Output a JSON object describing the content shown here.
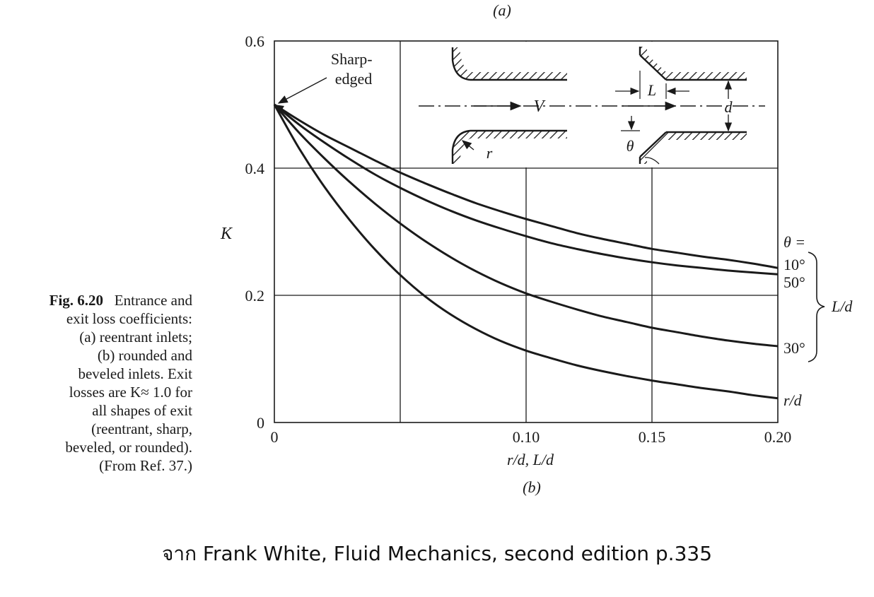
{
  "figure_label_top": "(a)",
  "figure_label_bottom": "(b)",
  "caption": {
    "fig_number": "Fig. 6.20",
    "lines": [
      "Entrance and",
      "exit loss coefficients:",
      "(a) reentrant inlets;",
      "(b) rounded and",
      "beveled inlets. Exit",
      "losses are K≈ 1.0 for",
      "all shapes of exit",
      "(reentrant, sharp,",
      "beveled, or rounded).",
      "(From Ref. 37.)"
    ]
  },
  "source_note": "จาก Frank White, Fluid Mechanics, second edition p.335",
  "colors": {
    "ink": "#1a1a1a",
    "background": "#ffffff"
  },
  "chart_data": {
    "type": "line",
    "xlabel": "r/d, L/d",
    "ylabel": "K",
    "xlim": [
      0,
      0.2
    ],
    "ylim": [
      0,
      0.6
    ],
    "x_ticks": [
      {
        "value": 0,
        "label": "0"
      },
      {
        "value": 0.1,
        "label": "0.10"
      },
      {
        "value": 0.15,
        "label": "0.15"
      },
      {
        "value": 0.2,
        "label": "0.20"
      }
    ],
    "y_ticks": [
      {
        "value": 0,
        "label": "0"
      },
      {
        "value": 0.2,
        "label": "0.2"
      },
      {
        "value": 0.4,
        "label": "0.4"
      },
      {
        "value": 0.6,
        "label": "0.6"
      }
    ],
    "grid": true,
    "legend_title": "θ =",
    "bracket_label": "L/d",
    "annotation": "Sharp-edged",
    "inset_labels": [
      "V",
      "r",
      "L",
      "d",
      "θ"
    ],
    "series": [
      {
        "name": "10°",
        "x": [
          0,
          0.01,
          0.02,
          0.03,
          0.04,
          0.05,
          0.06,
          0.07,
          0.08,
          0.09,
          0.1,
          0.11,
          0.12,
          0.13,
          0.14,
          0.15,
          0.16,
          0.17,
          0.18,
          0.19,
          0.2
        ],
        "y": [
          0.5,
          0.475,
          0.452,
          0.432,
          0.412,
          0.393,
          0.376,
          0.36,
          0.345,
          0.332,
          0.32,
          0.309,
          0.298,
          0.289,
          0.281,
          0.273,
          0.267,
          0.261,
          0.256,
          0.25,
          0.243
        ]
      },
      {
        "name": "50°",
        "x": [
          0,
          0.01,
          0.02,
          0.03,
          0.04,
          0.05,
          0.06,
          0.07,
          0.08,
          0.09,
          0.1,
          0.11,
          0.12,
          0.13,
          0.14,
          0.15,
          0.16,
          0.17,
          0.18,
          0.19,
          0.2
        ],
        "y": [
          0.5,
          0.468,
          0.44,
          0.414,
          0.39,
          0.369,
          0.35,
          0.333,
          0.318,
          0.305,
          0.293,
          0.282,
          0.273,
          0.265,
          0.258,
          0.252,
          0.247,
          0.243,
          0.239,
          0.236,
          0.233
        ]
      },
      {
        "name": "30°",
        "x": [
          0,
          0.01,
          0.02,
          0.03,
          0.04,
          0.05,
          0.06,
          0.07,
          0.08,
          0.09,
          0.1,
          0.11,
          0.12,
          0.13,
          0.14,
          0.15,
          0.16,
          0.17,
          0.18,
          0.19,
          0.2
        ],
        "y": [
          0.5,
          0.455,
          0.415,
          0.378,
          0.344,
          0.313,
          0.285,
          0.26,
          0.238,
          0.219,
          0.203,
          0.19,
          0.178,
          0.167,
          0.158,
          0.149,
          0.142,
          0.135,
          0.129,
          0.124,
          0.12
        ]
      },
      {
        "name": "r/d",
        "x": [
          0,
          0.01,
          0.02,
          0.03,
          0.04,
          0.05,
          0.06,
          0.07,
          0.08,
          0.09,
          0.1,
          0.11,
          0.12,
          0.13,
          0.14,
          0.15,
          0.16,
          0.17,
          0.18,
          0.19,
          0.2
        ],
        "y": [
          0.5,
          0.43,
          0.37,
          0.318,
          0.272,
          0.232,
          0.198,
          0.17,
          0.147,
          0.128,
          0.113,
          0.101,
          0.09,
          0.081,
          0.073,
          0.066,
          0.06,
          0.054,
          0.049,
          0.043,
          0.038
        ]
      }
    ]
  }
}
